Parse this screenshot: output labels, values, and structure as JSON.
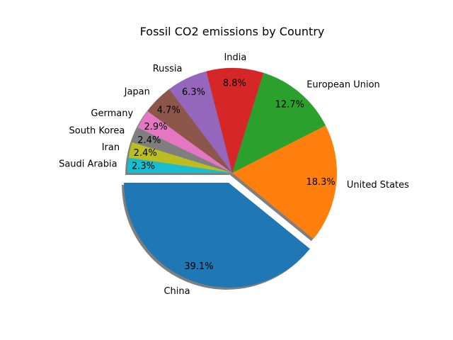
{
  "chart_data": {
    "type": "pie",
    "title": "Fossil CO2 emissions by Country",
    "slices": [
      {
        "label": "China",
        "value": 39.1,
        "value_label": "39.1%",
        "color": "#1f77b4",
        "exploded": true
      },
      {
        "label": "United States",
        "value": 18.3,
        "value_label": "18.3%",
        "color": "#ff7f0e",
        "exploded": false
      },
      {
        "label": "European Union",
        "value": 12.7,
        "value_label": "12.7%",
        "color": "#2ca02c",
        "exploded": false
      },
      {
        "label": "India",
        "value": 8.8,
        "value_label": "8.8%",
        "color": "#d62728",
        "exploded": false
      },
      {
        "label": "Russia",
        "value": 6.3,
        "value_label": "6.3%",
        "color": "#9467bd",
        "exploded": false
      },
      {
        "label": "Japan",
        "value": 4.7,
        "value_label": "4.7%",
        "color": "#8c564b",
        "exploded": false
      },
      {
        "label": "Germany",
        "value": 2.9,
        "value_label": "2.9%",
        "color": "#e377c2",
        "exploded": false
      },
      {
        "label": "South Korea",
        "value": 2.4,
        "value_label": "2.4%",
        "color": "#7f7f7f",
        "exploded": false
      },
      {
        "label": "Iran",
        "value": 2.4,
        "value_label": "2.4%",
        "color": "#bcbd22",
        "exploded": false
      },
      {
        "label": "Saudi Arabia",
        "value": 2.3,
        "value_label": "2.3%",
        "color": "#17becf",
        "exploded": false
      }
    ],
    "start_angle_deg": 180,
    "direction": "counterclockwise",
    "shadow": true
  }
}
